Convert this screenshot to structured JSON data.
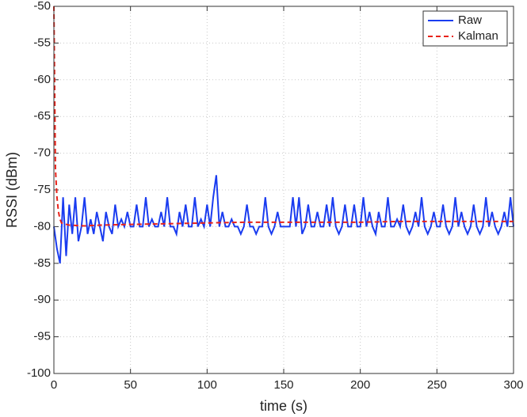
{
  "chart_data": {
    "type": "line",
    "x_label": "time (s)",
    "y_label": "RSSI (dBm)",
    "xlim": [
      0,
      300
    ],
    "ylim": [
      -100,
      -50
    ],
    "xticks": [
      0,
      50,
      100,
      150,
      200,
      250,
      300
    ],
    "yticks": [
      -100,
      -95,
      -90,
      -85,
      -80,
      -75,
      -70,
      -65,
      -60,
      -55,
      -50
    ],
    "grid": true,
    "legend": "upper right",
    "series": [
      {
        "name": "Raw",
        "color": "#1a3cf0",
        "dash": "solid",
        "x": [
          0,
          2,
          4,
          6,
          8,
          10,
          12,
          14,
          16,
          18,
          20,
          22,
          24,
          26,
          28,
          30,
          32,
          34,
          36,
          38,
          40,
          42,
          44,
          46,
          48,
          50,
          52,
          54,
          56,
          58,
          60,
          62,
          64,
          66,
          68,
          70,
          72,
          74,
          76,
          78,
          80,
          82,
          84,
          86,
          88,
          90,
          92,
          94,
          96,
          98,
          100,
          102,
          104,
          106,
          108,
          110,
          112,
          114,
          116,
          118,
          120,
          122,
          124,
          126,
          128,
          130,
          132,
          134,
          136,
          138,
          140,
          142,
          144,
          146,
          148,
          150,
          152,
          154,
          156,
          158,
          160,
          162,
          164,
          166,
          168,
          170,
          172,
          174,
          176,
          178,
          180,
          182,
          184,
          186,
          188,
          190,
          192,
          194,
          196,
          198,
          200,
          202,
          204,
          206,
          208,
          210,
          212,
          214,
          216,
          218,
          220,
          222,
          224,
          226,
          228,
          230,
          232,
          234,
          236,
          238,
          240,
          242,
          244,
          246,
          248,
          250,
          252,
          254,
          256,
          258,
          260,
          262,
          264,
          266,
          268,
          270,
          272,
          274,
          276,
          278,
          280,
          282,
          284,
          286,
          288,
          290,
          292,
          294,
          296,
          298,
          300
        ],
        "values": [
          -80,
          -83,
          -85,
          -76,
          -84,
          -77,
          -81,
          -76,
          -82,
          -80,
          -76,
          -81,
          -79,
          -81,
          -78,
          -80,
          -82,
          -78,
          -80,
          -81,
          -77,
          -80,
          -79,
          -80,
          -78,
          -80,
          -80,
          -77,
          -80,
          -80,
          -76,
          -80,
          -79,
          -80,
          -80,
          -78,
          -80,
          -76,
          -80,
          -80,
          -81,
          -78,
          -80,
          -77,
          -80,
          -80,
          -76,
          -80,
          -79,
          -80,
          -77,
          -80,
          -76,
          -73,
          -80,
          -78,
          -80,
          -80,
          -79,
          -80,
          -80,
          -81,
          -80,
          -77,
          -80,
          -80,
          -81,
          -80,
          -80,
          -76,
          -80,
          -81,
          -80,
          -78,
          -80,
          -80,
          -80,
          -80,
          -76,
          -80,
          -76,
          -81,
          -80,
          -77,
          -80,
          -80,
          -78,
          -80,
          -80,
          -77,
          -80,
          -76,
          -80,
          -81,
          -80,
          -77,
          -80,
          -80,
          -77,
          -80,
          -80,
          -76,
          -80,
          -78,
          -80,
          -81,
          -78,
          -80,
          -80,
          -76,
          -80,
          -80,
          -79,
          -80,
          -77,
          -80,
          -81,
          -80,
          -78,
          -80,
          -76,
          -80,
          -81,
          -80,
          -78,
          -80,
          -80,
          -77,
          -80,
          -81,
          -80,
          -76,
          -80,
          -78,
          -80,
          -81,
          -80,
          -77,
          -80,
          -81,
          -80,
          -76,
          -80,
          -78,
          -80,
          -81,
          -80,
          -78,
          -80,
          -76,
          -80
        ]
      },
      {
        "name": "Kalman",
        "color": "#e8231a",
        "dash": "dashed",
        "x": [
          0,
          1,
          2,
          3,
          4,
          5,
          10,
          20,
          30,
          50,
          75,
          100,
          125,
          150,
          175,
          200,
          225,
          250,
          275,
          300
        ],
        "values": [
          -50,
          -72,
          -76,
          -78,
          -79,
          -79.5,
          -79.8,
          -79.9,
          -79.8,
          -79.7,
          -79.6,
          -79.5,
          -79.4,
          -79.4,
          -79.4,
          -79.4,
          -79.3,
          -79.3,
          -79.3,
          -79.3
        ]
      }
    ]
  }
}
